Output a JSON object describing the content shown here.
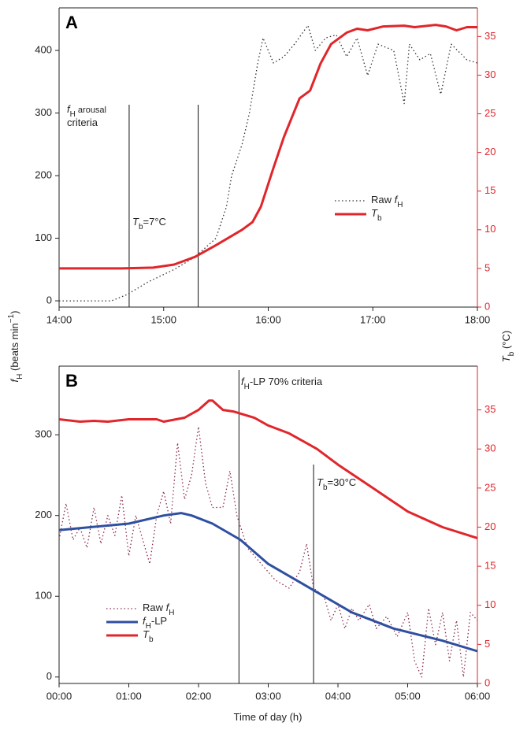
{
  "chart_data": [
    {
      "type": "line",
      "panel_label": "A",
      "xlim": [
        14,
        18
      ],
      "xticks": [
        {
          "value": 14,
          "label": "14:00"
        },
        {
          "value": 15,
          "label": "15:00"
        },
        {
          "value": 16,
          "label": "16:00"
        },
        {
          "value": 17,
          "label": "17:00"
        },
        {
          "value": 18,
          "label": "18:00"
        }
      ],
      "ylim": [
        -10,
        468
      ],
      "yticks": [
        0,
        100,
        200,
        300,
        400
      ],
      "y2lim": [
        0,
        38.7
      ],
      "y2ticks": [
        0,
        5,
        10,
        15,
        20,
        25,
        30,
        35
      ],
      "vlines": [
        14.67,
        15.33
      ],
      "annotations": [
        {
          "lines": [
            [
              {
                "text": "f",
                "style": "italic"
              },
              {
                "text": "H",
                "style": "sub"
              },
              {
                "text": " arousal",
                "style": "small"
              }
            ],
            [
              {
                "text": "criteria",
                "style": "normal"
              }
            ]
          ]
        },
        {
          "lines": [
            [
              {
                "text": "T",
                "style": "italic"
              },
              {
                "text": "b",
                "style": "sub"
              },
              {
                "text": "=7°C",
                "style": "normal"
              }
            ]
          ]
        }
      ],
      "series": [
        {
          "name": [
            {
              "text": "Raw ",
              "style": "normal"
            },
            {
              "text": "f",
              "style": "italic"
            },
            {
              "text": "H",
              "style": "sub"
            }
          ],
          "color": "#333333",
          "dash": "dotted",
          "axis": "y",
          "x": [
            14,
            14.5,
            14.65,
            14.85,
            15.1,
            15.3,
            15.5,
            15.6,
            15.65,
            15.75,
            15.82,
            15.9,
            15.95,
            16.05,
            16.15,
            16.25,
            16.38,
            16.45,
            16.55,
            16.65,
            16.75,
            16.85,
            16.95,
            17.05,
            17.2,
            17.3,
            17.35,
            17.45,
            17.55,
            17.65,
            17.75,
            17.9,
            18
          ],
          "values": [
            0,
            0,
            10,
            30,
            50,
            70,
            100,
            150,
            200,
            250,
            300,
            380,
            420,
            380,
            390,
            410,
            440,
            400,
            420,
            425,
            390,
            420,
            360,
            410,
            400,
            315,
            410,
            385,
            395,
            330,
            410,
            385,
            380
          ]
        },
        {
          "name": [
            {
              "text": "T",
              "style": "italic"
            },
            {
              "text": "b",
              "style": "sub"
            }
          ],
          "color": "#e0262b",
          "dash": "solid",
          "axis": "y2",
          "x": [
            14,
            14.6,
            14.9,
            15.1,
            15.3,
            15.5,
            15.75,
            15.85,
            15.93,
            16.05,
            16.15,
            16.3,
            16.4,
            16.5,
            16.6,
            16.75,
            16.85,
            16.95,
            17.1,
            17.3,
            17.4,
            17.6,
            17.7,
            17.8,
            17.9,
            18
          ],
          "values": [
            5,
            5,
            5.1,
            5.5,
            6.5,
            8,
            10,
            11,
            13,
            18,
            22,
            27,
            28,
            31.5,
            34,
            35.5,
            36,
            35.8,
            36.3,
            36.4,
            36.2,
            36.5,
            36.3,
            35.8,
            36.2,
            36.2
          ]
        }
      ]
    },
    {
      "type": "line",
      "panel_label": "B",
      "xlim": [
        0,
        6
      ],
      "xticks": [
        {
          "value": 0,
          "label": "00:00"
        },
        {
          "value": 1,
          "label": "01:00"
        },
        {
          "value": 2,
          "label": "02:00"
        },
        {
          "value": 3,
          "label": "03:00"
        },
        {
          "value": 4,
          "label": "04:00"
        },
        {
          "value": 5,
          "label": "05:00"
        },
        {
          "value": 6,
          "label": "06:00"
        }
      ],
      "ylim": [
        -8,
        385
      ],
      "yticks": [
        0,
        100,
        200,
        300
      ],
      "y2lim": [
        0,
        40.6
      ],
      "y2ticks": [
        0,
        5,
        10,
        15,
        20,
        25,
        30,
        35
      ],
      "vlines": [
        2.58,
        3.65
      ],
      "annotations": [
        {
          "lines": [
            [
              {
                "text": "f",
                "style": "italic"
              },
              {
                "text": "H",
                "style": "sub"
              },
              {
                "text": "-LP 70% criteria",
                "style": "normal"
              }
            ]
          ]
        },
        {
          "lines": [
            [
              {
                "text": "T",
                "style": "italic"
              },
              {
                "text": "b",
                "style": "sub"
              },
              {
                "text": "=30°C",
                "style": "normal"
              }
            ]
          ]
        }
      ],
      "series": [
        {
          "name": [
            {
              "text": "Raw ",
              "style": "normal"
            },
            {
              "text": "f",
              "style": "italic"
            },
            {
              "text": "H",
              "style": "sub"
            }
          ],
          "color": "#8b2a4a",
          "dash": "dotted",
          "axis": "y",
          "x": [
            0,
            0.1,
            0.2,
            0.3,
            0.4,
            0.5,
            0.6,
            0.7,
            0.8,
            0.9,
            1.0,
            1.1,
            1.2,
            1.3,
            1.4,
            1.5,
            1.6,
            1.7,
            1.8,
            1.9,
            2.0,
            2.1,
            2.2,
            2.35,
            2.45,
            2.55,
            2.7,
            2.9,
            3.1,
            3.3,
            3.45,
            3.55,
            3.65,
            3.8,
            3.9,
            4.0,
            4.1,
            4.2,
            4.3,
            4.45,
            4.55,
            4.7,
            4.85,
            5.0,
            5.1,
            5.2,
            5.3,
            5.4,
            5.5,
            5.6,
            5.7,
            5.8,
            5.9,
            6.0
          ],
          "values": [
            170,
            215,
            170,
            185,
            160,
            210,
            165,
            200,
            175,
            225,
            150,
            200,
            170,
            140,
            200,
            230,
            190,
            290,
            220,
            250,
            310,
            240,
            210,
            210,
            255,
            200,
            160,
            140,
            120,
            110,
            130,
            165,
            110,
            100,
            70,
            90,
            60,
            85,
            70,
            90,
            60,
            75,
            50,
            80,
            20,
            0,
            85,
            40,
            80,
            20,
            70,
            0,
            80,
            70
          ]
        },
        {
          "name": [
            {
              "text": "f",
              "style": "italic"
            },
            {
              "text": "H",
              "style": "sub"
            },
            {
              "text": "-LP",
              "style": "normal"
            }
          ],
          "color": "#2f4fa0",
          "dash": "solid",
          "axis": "y",
          "x": [
            0,
            1.0,
            1.5,
            1.75,
            1.9,
            2.2,
            2.6,
            3.0,
            3.4,
            3.8,
            4.2,
            4.8,
            5.5,
            6.0
          ],
          "values": [
            182,
            190,
            200,
            203,
            200,
            190,
            170,
            140,
            120,
            100,
            80,
            60,
            45,
            32
          ]
        },
        {
          "name": [
            {
              "text": "T",
              "style": "italic"
            },
            {
              "text": "b",
              "style": "sub"
            }
          ],
          "color": "#e0262b",
          "dash": "solid",
          "axis": "y2",
          "x": [
            0,
            0.3,
            0.5,
            0.7,
            1.0,
            1.4,
            1.5,
            1.8,
            2.0,
            2.15,
            2.2,
            2.35,
            2.5,
            2.8,
            3.0,
            3.3,
            3.5,
            3.7,
            4.0,
            4.5,
            5.0,
            5.5,
            6.0
          ],
          "values": [
            33.8,
            33.5,
            33.6,
            33.5,
            33.8,
            33.8,
            33.5,
            34,
            35,
            36.2,
            36.2,
            35,
            34.8,
            34,
            33,
            32,
            31,
            30,
            28,
            25,
            22,
            20,
            18.6
          ]
        }
      ]
    }
  ],
  "axis_labels": {
    "y": [
      {
        "text": "f",
        "style": "italic"
      },
      {
        "text": "H",
        "style": "sub"
      },
      {
        "text": " (beats min",
        "style": "normal"
      },
      {
        "text": "−1",
        "style": "sup"
      },
      {
        "text": ")",
        "style": "normal"
      }
    ],
    "y2": [
      {
        "text": "T",
        "style": "italic"
      },
      {
        "text": "b",
        "style": "sub"
      },
      {
        "text": " (°C)",
        "style": "normal"
      }
    ],
    "x": [
      {
        "text": "Time of day (h)",
        "style": "normal"
      }
    ]
  }
}
